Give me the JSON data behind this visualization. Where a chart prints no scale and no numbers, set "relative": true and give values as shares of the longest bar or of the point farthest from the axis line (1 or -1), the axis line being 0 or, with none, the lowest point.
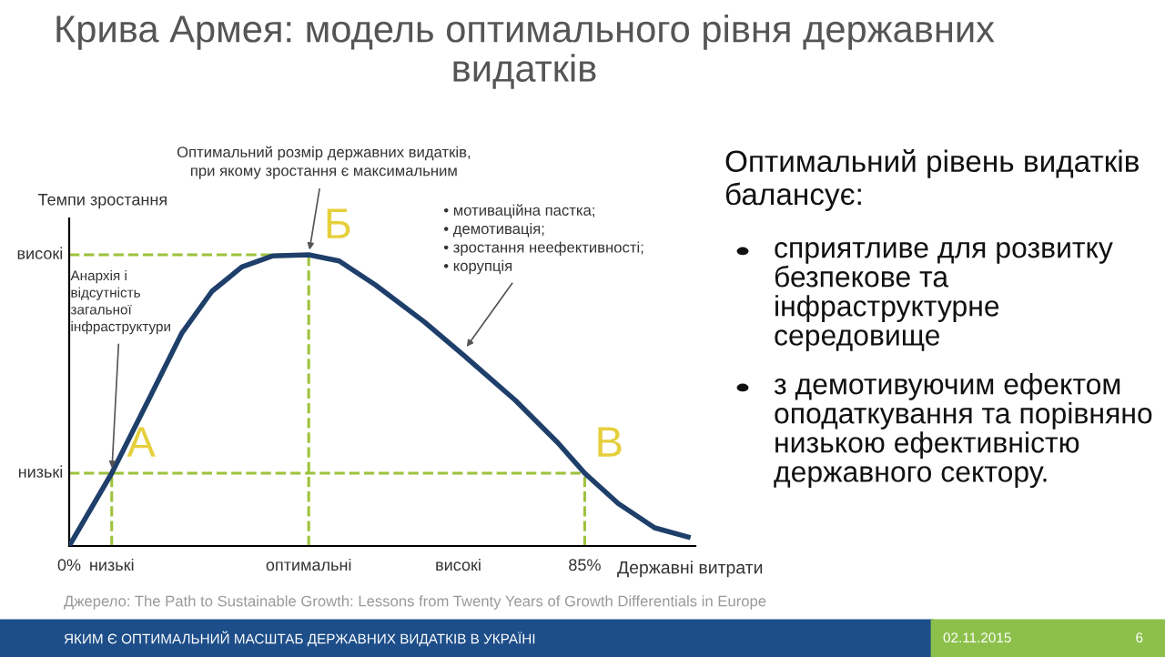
{
  "chart_data": {
    "type": "line",
    "relative": true,
    "title": "Крива Армея: модель оптимального рівня державних видатків",
    "xlabel": "Державні витрати",
    "ylabel": "Темпи зростання",
    "x": [
      0,
      7,
      13.5,
      18.5,
      23.5,
      28.4,
      33.4,
      39.4,
      44.4,
      50.4,
      58.4,
      65.4,
      73.4,
      80.4,
      84.8,
      90.3,
      96.3,
      101.8
    ],
    "series": [
      {
        "color": "#1f3f6b",
        "values": [
          0,
          0.25,
          0.52,
          0.73,
          0.875,
          0.958,
          0.996,
          1.0,
          0.979,
          0.896,
          0.77,
          0.646,
          0.5,
          0.354,
          0.25,
          0.146,
          0.0625,
          0.031
        ]
      }
    ],
    "xlim": [
      0,
      103
    ],
    "xticks": [
      {
        "value": 0,
        "label": "0%"
      },
      {
        "value": 7,
        "label": "низькі"
      },
      {
        "value": 39.4,
        "label": "оптимальні"
      },
      {
        "value": 64,
        "label": "високі"
      },
      {
        "value": 84.8,
        "label": "85%"
      }
    ],
    "ref_lines": [
      {
        "axis": "y",
        "value": 0.25,
        "label": "низькі",
        "color": "#9dc23b",
        "line_style": "dashed"
      },
      {
        "axis": "y",
        "value": 1.0,
        "label": "високі",
        "color": "#9dc23b",
        "line_style": "dashed"
      },
      {
        "axis": "x",
        "value": 7,
        "color": "#9dc23b",
        "line_style": "dashed"
      },
      {
        "axis": "x",
        "value": 39.4,
        "color": "#9dc23b",
        "line_style": "dashed"
      },
      {
        "axis": "x",
        "value": 84.8,
        "color": "#9dc23b",
        "line_style": "dashed"
      }
    ],
    "annotations": [
      {
        "text": "Оптимальний розмір державних видатків,\nпри якому зростання є максимальним",
        "x": 39.4,
        "y": 1.0
      },
      {
        "text": "Анархія і\nвідсутність\nзагальної\nінфраструктури",
        "x": 7,
        "y": 0.25
      },
      {
        "text": "• мотиваційна пастка;\n• демотивація;\n• зростання неефективності;\n• корупція",
        "x": 64.9,
        "y": 0.67
      },
      {
        "text": "А",
        "x": 7,
        "y": 0.25
      },
      {
        "text": "Б",
        "x": 39.4,
        "y": 1.0
      },
      {
        "text": "В",
        "x": 84.8,
        "y": 0.25
      },
      "Оптимальний рівень видатків балансує:",
      "сприятливе для розвитку безпекове та інфраструктурне середовище",
      "з демотивуючим ефектом оподаткування та порівняно низькою ефективністю державного сектору.",
      "Джерело: The Path to Sustainable Growth: Lessons from Twenty Years of Growth Differentials in Europe",
      "ЯКИМ Є ОПТИМАЛЬНИЙ МАСШТАБ ДЕРЖАВНИХ ВИДАТКІВ В УКРАЇНІ",
      "02.11.2015",
      "6"
    ],
    "grid": false,
    "legend": false,
    "line_style": "solid"
  }
}
